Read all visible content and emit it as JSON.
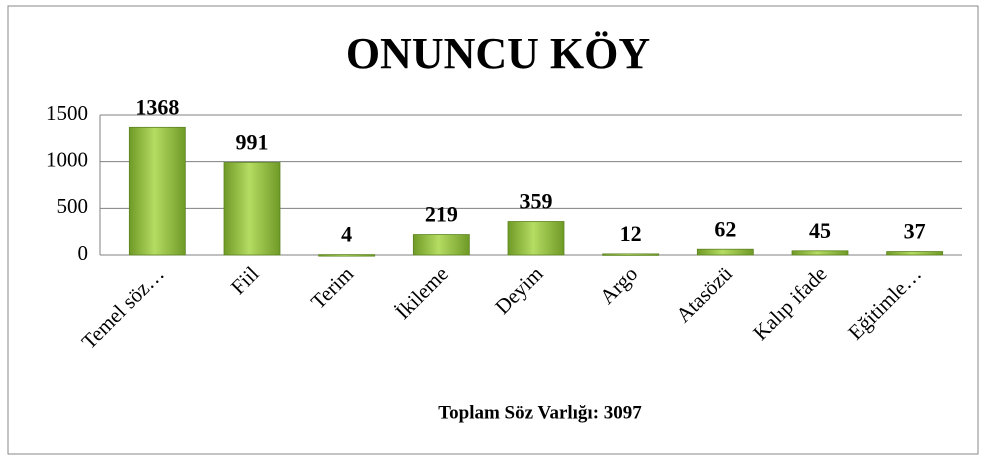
{
  "chart_data": {
    "type": "bar",
    "title": "ONUNCU KÖY",
    "x_label": "Toplam Söz Varlığı: 3097",
    "categories": [
      "Temel söz…",
      "Fiil",
      "Terim",
      "İkileme",
      "Deyim",
      "Argo",
      "Atasözü",
      "Kalıp ifade",
      "Eğitimle…"
    ],
    "values": [
      1368,
      991,
      4,
      219,
      359,
      12,
      62,
      45,
      37
    ],
    "color": "#8fbc3a",
    "ylim": [
      0,
      1500
    ],
    "yticks": [
      0,
      500,
      1000,
      1500
    ],
    "grid": true
  }
}
